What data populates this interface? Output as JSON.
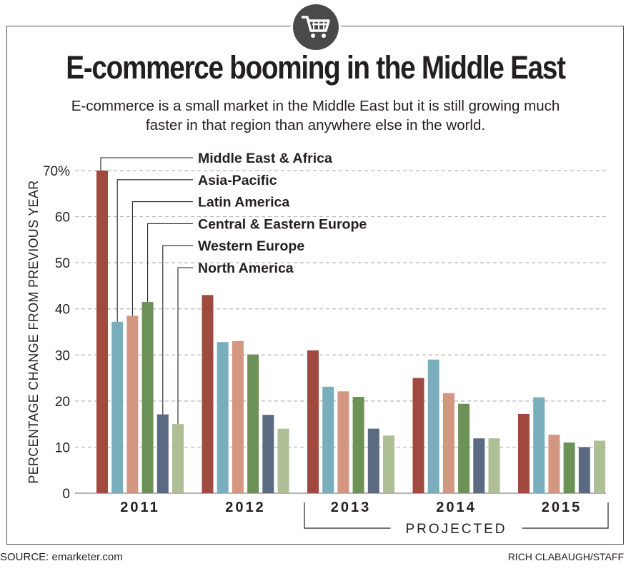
{
  "title": "E-commerce booming in the Middle East",
  "subtitle": "E-commerce is a small market in the Middle East but it is still growing much faster in that region than anywhere else in the world.",
  "source": "SOURCE: emarketer.com",
  "credit": "RICH CLABAUGH/STAFF",
  "icon": "shopping-cart-icon",
  "chart_data": {
    "type": "bar",
    "categories": [
      "2011",
      "2012",
      "2013",
      "2014",
      "2015"
    ],
    "series": [
      {
        "name": "Middle East & Africa",
        "color": "#a04a40",
        "values": [
          70,
          43,
          31,
          25,
          17.2
        ]
      },
      {
        "name": "Asia-Pacific",
        "color": "#79aebd",
        "values": [
          37.2,
          32.8,
          23.1,
          29.0,
          20.8
        ]
      },
      {
        "name": "Latin America",
        "color": "#d39680",
        "values": [
          38.5,
          33.0,
          22.1,
          21.7,
          12.7
        ]
      },
      {
        "name": "Central & Eastern Europe",
        "color": "#6d9257",
        "values": [
          41.5,
          30.1,
          20.9,
          19.4,
          11.0
        ]
      },
      {
        "name": "Western Europe",
        "color": "#5b6a80",
        "values": [
          17.1,
          17.0,
          14.0,
          11.9,
          10.0
        ]
      },
      {
        "name": "North America",
        "color": "#aebf96",
        "values": [
          15.0,
          14.0,
          12.5,
          11.9,
          11.4
        ]
      }
    ],
    "ylabel": "PERCENTAGE CHANGE FROM PREVIOUS YEAR",
    "ylim": [
      0,
      70
    ],
    "yticks": [
      0,
      10,
      20,
      30,
      40,
      50,
      60,
      70
    ],
    "ytick_labels": [
      "0",
      "10",
      "20",
      "30",
      "40",
      "50",
      "60",
      "70%"
    ],
    "grid": true,
    "annotation": "PROJECTED",
    "annotation_categories": [
      "2013",
      "2014",
      "2015"
    ]
  }
}
